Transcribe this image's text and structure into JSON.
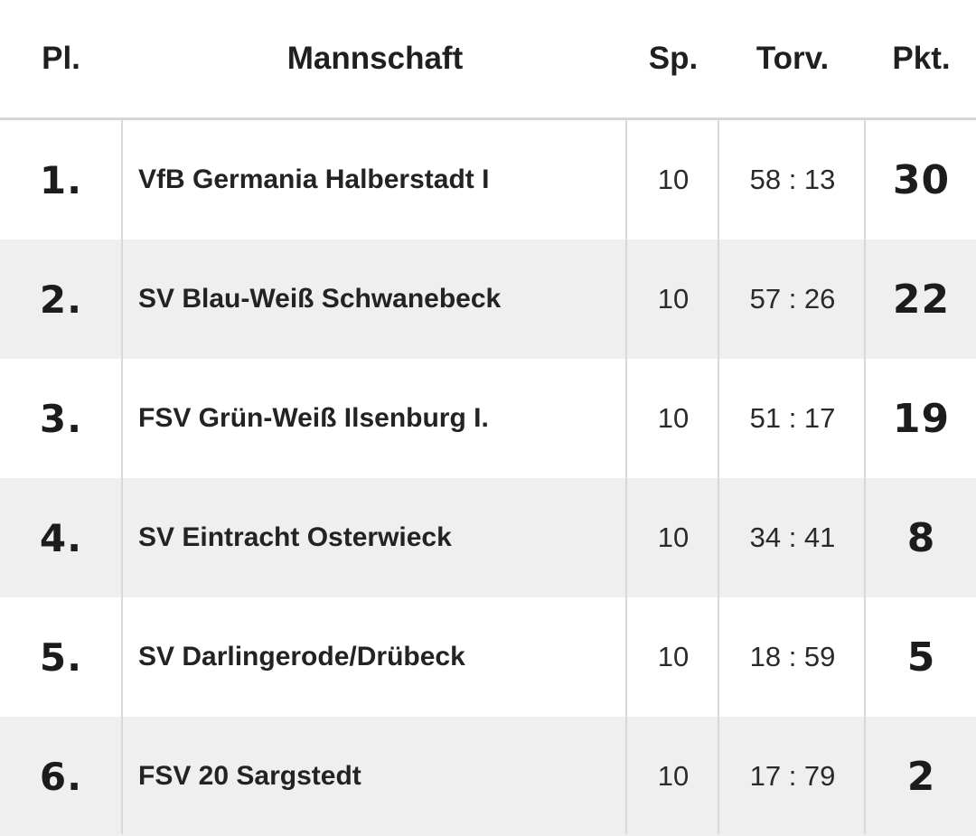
{
  "header": {
    "place": "Pl.",
    "team": "Mannschaft",
    "games": "Sp.",
    "goals": "Torv.",
    "points": "Pkt."
  },
  "rows": [
    {
      "place": "1.",
      "team": "VfB Germania Halberstadt I",
      "games": "10",
      "goals": "58 : 13",
      "points": "30"
    },
    {
      "place": "2.",
      "team": "SV Blau-Weiß Schwanebeck",
      "games": "10",
      "goals": "57 : 26",
      "points": "22"
    },
    {
      "place": "3.",
      "team": "FSV Grün-Weiß Ilsenburg I.",
      "games": "10",
      "goals": "51 : 17",
      "points": "19"
    },
    {
      "place": "4.",
      "team": "SV Eintracht Osterwieck",
      "games": "10",
      "goals": "34 : 41",
      "points": "8"
    },
    {
      "place": "5.",
      "team": "SV Darlingerode/Drübeck",
      "games": "10",
      "goals": "18 : 59",
      "points": "5"
    },
    {
      "place": "6.",
      "team": "FSV 20 Sargstedt",
      "games": "10",
      "goals": "17 : 79",
      "points": "2"
    }
  ],
  "colors": {
    "row_alt_background": "#efefef",
    "grid_line": "#d9d9d9",
    "text": "#222222"
  }
}
